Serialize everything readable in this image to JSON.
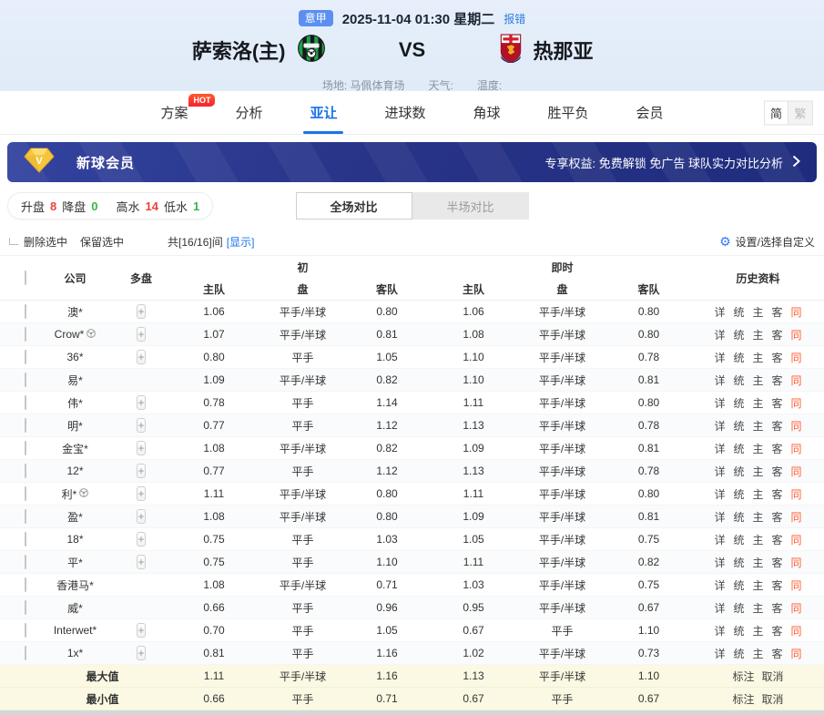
{
  "header": {
    "league_badge": "意甲",
    "datetime": "2025-11-04 01:30 星期二",
    "report_error": "报错",
    "home_team": "萨索洛(主)",
    "vs": "VS",
    "away_team": "热那亚",
    "venue": "场地: 马佩体育场",
    "weather": "天气:",
    "temperature": "温度:"
  },
  "nav": {
    "tabs": [
      {
        "label": "方案",
        "badge": "HOT"
      },
      {
        "label": "分析"
      },
      {
        "label": "亚让",
        "active": true
      },
      {
        "label": "进球数"
      },
      {
        "label": "角球"
      },
      {
        "label": "胜平负"
      },
      {
        "label": "会员"
      }
    ],
    "lang_simplified": "简",
    "lang_traditional": "繁"
  },
  "banner": {
    "title": "新球会员",
    "benefits": "专享权益: 免费解锁 免广告 球队实力对比分析"
  },
  "stats": {
    "items": [
      {
        "label": "升盘",
        "value": "8",
        "color": "#e8433e"
      },
      {
        "label": "降盘",
        "value": "0",
        "color": "#39b549"
      },
      {
        "label": "高水",
        "value": "14",
        "color": "#e8433e"
      },
      {
        "label": "低水",
        "value": "1",
        "color": "#39b549"
      }
    ]
  },
  "toggle": {
    "full": "全场对比",
    "half": "半场对比"
  },
  "controls": {
    "delete_selected": "删除选中",
    "keep_selected": "保留选中",
    "count_text": "共[16/16]间",
    "show_link": "[显示]",
    "settings": "设置/选择自定义"
  },
  "table": {
    "headers": {
      "company": "公司",
      "multi": "多盘",
      "initial": "初",
      "live": "即时",
      "home": "主队",
      "handicap": "盘",
      "away": "客队",
      "history": "历史资料"
    },
    "history_links": [
      "详",
      "统",
      "主",
      "客",
      "同"
    ],
    "rows": [
      {
        "company": "澳*",
        "ball": false,
        "plus": true,
        "init_home": "1.06",
        "init_handicap": "平手/半球",
        "init_away": "0.80",
        "live_home": "1.06",
        "live_handicap": "平手/半球",
        "live_away": "0.80"
      },
      {
        "company": "Crow*",
        "ball": true,
        "plus": true,
        "init_home": "1.07",
        "init_handicap": "平手/半球",
        "init_away": "0.81",
        "live_home": "1.08",
        "live_handicap": "平手/半球",
        "live_away": "0.80"
      },
      {
        "company": "36*",
        "ball": false,
        "plus": true,
        "init_home": "0.80",
        "init_handicap": "平手",
        "init_away": "1.05",
        "live_home": "1.10",
        "live_handicap": "平手/半球",
        "live_away": "0.78"
      },
      {
        "company": "易*",
        "ball": false,
        "plus": false,
        "init_home": "1.09",
        "init_handicap": "平手/半球",
        "init_away": "0.82",
        "live_home": "1.10",
        "live_handicap": "平手/半球",
        "live_away": "0.81"
      },
      {
        "company": "伟*",
        "ball": false,
        "plus": true,
        "init_home": "0.78",
        "init_handicap": "平手",
        "init_away": "1.14",
        "live_home": "1.11",
        "live_handicap": "平手/半球",
        "live_away": "0.80"
      },
      {
        "company": "明*",
        "ball": false,
        "plus": true,
        "init_home": "0.77",
        "init_handicap": "平手",
        "init_away": "1.12",
        "live_home": "1.13",
        "live_handicap": "平手/半球",
        "live_away": "0.78"
      },
      {
        "company": "金宝*",
        "ball": false,
        "plus": true,
        "init_home": "1.08",
        "init_handicap": "平手/半球",
        "init_away": "0.82",
        "live_home": "1.09",
        "live_handicap": "平手/半球",
        "live_away": "0.81"
      },
      {
        "company": "12*",
        "ball": false,
        "plus": true,
        "init_home": "0.77",
        "init_handicap": "平手",
        "init_away": "1.12",
        "live_home": "1.13",
        "live_handicap": "平手/半球",
        "live_away": "0.78"
      },
      {
        "company": "利*",
        "ball": true,
        "plus": true,
        "init_home": "1.11",
        "init_handicap": "平手/半球",
        "init_away": "0.80",
        "live_home": "1.11",
        "live_handicap": "平手/半球",
        "live_away": "0.80"
      },
      {
        "company": "盈*",
        "ball": false,
        "plus": true,
        "init_home": "1.08",
        "init_handicap": "平手/半球",
        "init_away": "0.80",
        "live_home": "1.09",
        "live_handicap": "平手/半球",
        "live_away": "0.81"
      },
      {
        "company": "18*",
        "ball": false,
        "plus": true,
        "init_home": "0.75",
        "init_handicap": "平手",
        "init_away": "1.03",
        "live_home": "1.05",
        "live_handicap": "平手/半球",
        "live_away": "0.75"
      },
      {
        "company": "平*",
        "ball": false,
        "plus": true,
        "init_home": "0.75",
        "init_handicap": "平手",
        "init_away": "1.10",
        "live_home": "1.11",
        "live_handicap": "平手/半球",
        "live_away": "0.82"
      },
      {
        "company": "香港马*",
        "ball": false,
        "plus": false,
        "init_home": "1.08",
        "init_handicap": "平手/半球",
        "init_away": "0.71",
        "live_home": "1.03",
        "live_handicap": "平手/半球",
        "live_away": "0.75"
      },
      {
        "company": "威*",
        "ball": false,
        "plus": false,
        "init_home": "0.66",
        "init_handicap": "平手",
        "init_away": "0.96",
        "live_home": "0.95",
        "live_handicap": "平手/半球",
        "live_away": "0.67"
      },
      {
        "company": "Interwet*",
        "ball": false,
        "plus": true,
        "init_home": "0.70",
        "init_handicap": "平手",
        "init_away": "1.05",
        "live_home": "0.67",
        "live_handicap": "平手",
        "live_away": "1.10"
      },
      {
        "company": "1x*",
        "ball": false,
        "plus": true,
        "init_home": "0.81",
        "init_handicap": "平手",
        "init_away": "1.16",
        "live_home": "1.02",
        "live_handicap": "平手/半球",
        "live_away": "0.73"
      }
    ],
    "summary": [
      {
        "label": "最大值",
        "init_home": "1.11",
        "init_handicap": "平手/半球",
        "init_away": "1.16",
        "live_home": "1.13",
        "live_handicap": "平手/半球",
        "live_away": "1.10",
        "mark": "标注",
        "cancel": "取消"
      },
      {
        "label": "最小值",
        "init_home": "0.66",
        "init_handicap": "平手",
        "init_away": "0.71",
        "live_home": "0.67",
        "live_handicap": "平手",
        "live_away": "0.67",
        "mark": "标注",
        "cancel": "取消"
      }
    ]
  },
  "colors": {
    "accent_blue": "#1a73e8",
    "same_link": "#ff5b2e",
    "rise_red": "#e8433e",
    "fall_green": "#39b549",
    "banner_navy": "#273487"
  }
}
